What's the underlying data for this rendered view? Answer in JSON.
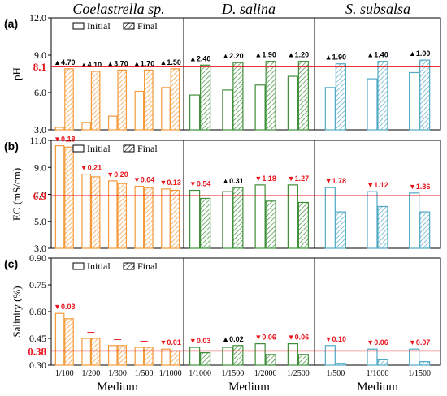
{
  "chart_data": {
    "type": "bar",
    "columns": [
      {
        "title": "Coelastrella sp.",
        "color": "#F39A3A",
        "categories": [
          "1/100",
          "1/200",
          "1/300",
          "1/500",
          "1/1000"
        ]
      },
      {
        "title": "D. salina",
        "color": "#3F8F3A",
        "categories": [
          "1/1000",
          "1/1500",
          "1/2000",
          "1/2500"
        ]
      },
      {
        "title": "S. subsalsa",
        "color": "#4FA9C4",
        "categories": [
          "1/500",
          "1/1000",
          "1/1500"
        ]
      }
    ],
    "xlabel": "Medium",
    "legend": {
      "initial": "Initial",
      "final": "Final"
    },
    "panels": [
      {
        "label": "(a)",
        "ylabel": "pH",
        "ylim": [
          3.0,
          12.0
        ],
        "yticks": [
          "3.0",
          "6.0",
          "9.0",
          "12.0"
        ],
        "tick_values": [
          3,
          6,
          9,
          12
        ],
        "refline": {
          "value": 8.1,
          "label": "8.1"
        },
        "show_legend": true,
        "groups": [
          {
            "initial": [
              3.2,
              3.6,
              4.1,
              6.1,
              6.4
            ],
            "final": [
              7.9,
              7.7,
              7.8,
              7.8,
              7.9
            ],
            "labels": [
              {
                "text": "▲4.70",
                "color": "#000000"
              },
              {
                "text": "▲4.10",
                "color": "#000000"
              },
              {
                "text": "▲3.70",
                "color": "#000000"
              },
              {
                "text": "▲1.70",
                "color": "#000000"
              },
              {
                "text": "▲1.50",
                "color": "#000000"
              }
            ]
          },
          {
            "initial": [
              5.8,
              6.2,
              6.6,
              7.3
            ],
            "final": [
              8.2,
              8.4,
              8.5,
              8.5
            ],
            "labels": [
              {
                "text": "▲2.40",
                "color": "#000000"
              },
              {
                "text": "▲2.20",
                "color": "#000000"
              },
              {
                "text": "▲1.90",
                "color": "#000000"
              },
              {
                "text": "▲1.20",
                "color": "#000000"
              }
            ]
          },
          {
            "initial": [
              6.4,
              7.1,
              7.6
            ],
            "final": [
              8.3,
              8.5,
              8.6
            ],
            "labels": [
              {
                "text": "▲1.90",
                "color": "#000000"
              },
              {
                "text": "▲1.40",
                "color": "#000000"
              },
              {
                "text": "▲1.00",
                "color": "#000000"
              }
            ]
          }
        ]
      },
      {
        "label": "(b)",
        "ylabel": "EC (mS/cm)",
        "ylim": [
          3.0,
          11.0
        ],
        "yticks": [
          "3.0",
          "5.0",
          "7.0",
          "9.0",
          "11.0"
        ],
        "tick_values": [
          3,
          5,
          7,
          9,
          11
        ],
        "refline": {
          "value": 6.9,
          "label": "6.9"
        },
        "show_legend": true,
        "groups": [
          {
            "initial": [
              10.6,
              8.5,
              8.0,
              7.6,
              7.4
            ],
            "final": [
              10.5,
              8.3,
              7.8,
              7.5,
              7.3
            ],
            "labels": [
              {
                "text": "▼0.18",
                "color": "#E8141B"
              },
              {
                "text": "▼0.21",
                "color": "#E8141B"
              },
              {
                "text": "▼0.20",
                "color": "#E8141B"
              },
              {
                "text": "▼0.04",
                "color": "#E8141B"
              },
              {
                "text": "▼0.13",
                "color": "#E8141B"
              }
            ]
          },
          {
            "initial": [
              7.3,
              7.2,
              7.7,
              7.7
            ],
            "final": [
              6.7,
              7.5,
              6.5,
              6.4
            ],
            "labels": [
              {
                "text": "▼0.54",
                "color": "#E8141B"
              },
              {
                "text": "▲0.31",
                "color": "#000000"
              },
              {
                "text": "▼1.18",
                "color": "#E8141B"
              },
              {
                "text": "▼1.27",
                "color": "#E8141B"
              }
            ]
          },
          {
            "initial": [
              7.5,
              7.2,
              7.1
            ],
            "final": [
              5.7,
              6.1,
              5.7
            ],
            "labels": [
              {
                "text": "▼1.78",
                "color": "#E8141B"
              },
              {
                "text": "▼1.12",
                "color": "#E8141B"
              },
              {
                "text": "▼1.36",
                "color": "#E8141B"
              }
            ]
          }
        ]
      },
      {
        "label": "(c)",
        "ylabel": "Salinity (%)",
        "ylim": [
          0.3,
          0.9
        ],
        "yticks": [
          "0.30",
          "0.45",
          "0.60",
          "0.75",
          "0.90"
        ],
        "tick_values": [
          0.3,
          0.45,
          0.6,
          0.75,
          0.9
        ],
        "refline": {
          "value": 0.38,
          "label": "0.38"
        },
        "show_legend": true,
        "groups": [
          {
            "initial": [
              0.59,
              0.45,
              0.41,
              0.4,
              0.39
            ],
            "final": [
              0.56,
              0.45,
              0.41,
              0.4,
              0.38
            ],
            "labels": [
              {
                "text": "▼0.03",
                "color": "#E8141B"
              },
              {
                "text": "—",
                "color": "#E8141B"
              },
              {
                "text": "—",
                "color": "#E8141B"
              },
              {
                "text": "—",
                "color": "#E8141B"
              },
              {
                "text": "▼0.01",
                "color": "#E8141B"
              }
            ]
          },
          {
            "initial": [
              0.4,
              0.4,
              0.42,
              0.42
            ],
            "final": [
              0.37,
              0.41,
              0.36,
              0.36
            ],
            "labels": [
              {
                "text": "▼0.03",
                "color": "#E8141B"
              },
              {
                "text": "▲0.02",
                "color": "#000000"
              },
              {
                "text": "▼0.06",
                "color": "#E8141B"
              },
              {
                "text": "▼0.06",
                "color": "#E8141B"
              }
            ]
          },
          {
            "initial": [
              0.41,
              0.39,
              0.39
            ],
            "final": [
              0.31,
              0.33,
              0.32
            ],
            "labels": [
              {
                "text": "▼0.10",
                "color": "#E8141B"
              },
              {
                "text": "▼0.06",
                "color": "#E8141B"
              },
              {
                "text": "▼0.07",
                "color": "#E8141B"
              }
            ]
          }
        ]
      }
    ]
  }
}
